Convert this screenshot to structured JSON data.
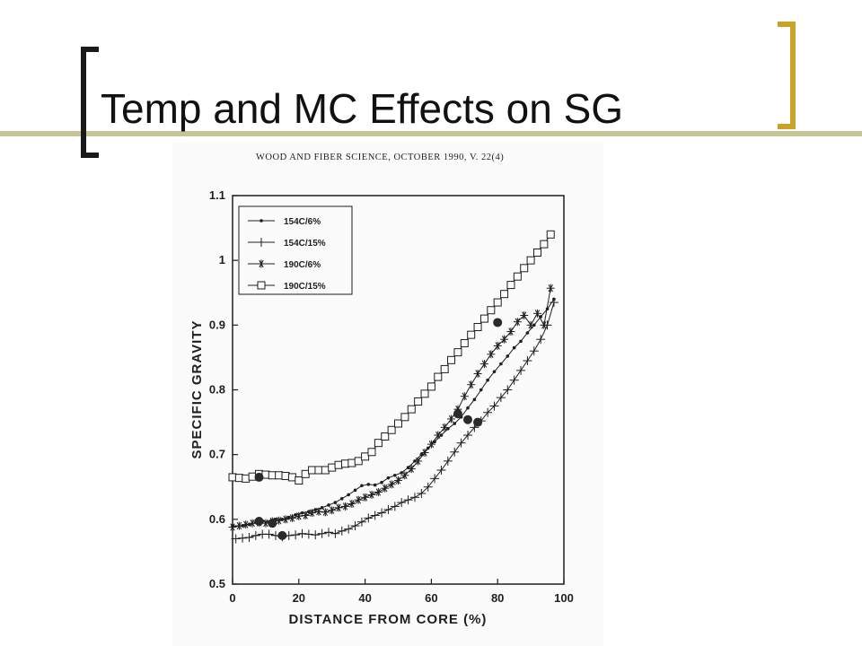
{
  "slide": {
    "title": "Temp and MC Effects on SG",
    "journal_header": "WOOD AND FIBER SCIENCE, OCTOBER 1990, V. 22(4)"
  },
  "colors": {
    "bracket_left": "#1a1a1a",
    "bracket_right": "#c9a227",
    "rule": "#c7c49a",
    "ink": "#1e1e1e"
  },
  "chart_data": {
    "type": "line",
    "title": "",
    "xlabel": "DISTANCE FROM CORE (%)",
    "ylabel": "SPECIFIC GRAVITY",
    "xlim": [
      0,
      100
    ],
    "ylim": [
      0.5,
      1.1
    ],
    "x_ticks": [
      0,
      20,
      40,
      60,
      80,
      100
    ],
    "y_ticks": [
      0.5,
      0.6,
      0.7,
      0.8,
      0.9,
      1,
      1.1
    ],
    "x_tick_labels": [
      "0",
      "20",
      "40",
      "60",
      "80",
      "100"
    ],
    "y_tick_labels": [
      "0.5",
      "0.6",
      "0.7",
      "0.8",
      "0.9",
      "1",
      "1.1"
    ],
    "grid": false,
    "legend_position": "top-left",
    "series": [
      {
        "name": "154C/6%",
        "marker": "dot",
        "x": [
          0,
          3,
          5,
          7,
          9,
          11,
          13,
          15,
          17,
          19,
          21,
          23,
          25,
          27,
          29,
          31,
          33,
          35,
          37,
          39,
          41,
          43,
          45,
          47,
          49,
          51,
          53,
          55,
          57,
          59,
          61,
          63,
          65,
          67,
          69,
          71,
          73,
          75,
          77,
          79,
          81,
          83,
          85,
          87,
          89,
          91,
          93,
          95,
          97
        ],
        "y": [
          0.59,
          0.59,
          0.592,
          0.595,
          0.597,
          0.596,
          0.6,
          0.6,
          0.603,
          0.607,
          0.61,
          0.612,
          0.615,
          0.618,
          0.622,
          0.626,
          0.632,
          0.638,
          0.645,
          0.652,
          0.654,
          0.653,
          0.657,
          0.664,
          0.668,
          0.672,
          0.68,
          0.69,
          0.7,
          0.71,
          0.72,
          0.73,
          0.74,
          0.748,
          0.758,
          0.772,
          0.785,
          0.8,
          0.815,
          0.828,
          0.84,
          0.852,
          0.865,
          0.875,
          0.888,
          0.9,
          0.913,
          0.925,
          0.94
        ]
      },
      {
        "name": "154C/15%",
        "marker": "plus",
        "x": [
          1,
          3,
          5,
          7,
          9,
          11,
          13,
          15,
          17,
          19,
          21,
          23,
          25,
          27,
          29,
          31,
          33,
          35,
          37,
          39,
          41,
          43,
          45,
          47,
          49,
          51,
          53,
          55,
          57,
          59,
          61,
          63,
          65,
          67,
          69,
          71,
          73,
          75,
          77,
          79,
          81,
          83,
          85,
          87,
          89,
          91,
          93,
          95,
          97
        ],
        "y": [
          0.57,
          0.571,
          0.572,
          0.575,
          0.577,
          0.577,
          0.575,
          0.573,
          0.575,
          0.576,
          0.578,
          0.577,
          0.576,
          0.578,
          0.58,
          0.578,
          0.582,
          0.585,
          0.59,
          0.596,
          0.602,
          0.606,
          0.61,
          0.615,
          0.62,
          0.626,
          0.63,
          0.634,
          0.64,
          0.65,
          0.663,
          0.676,
          0.69,
          0.704,
          0.718,
          0.73,
          0.742,
          0.752,
          0.765,
          0.775,
          0.788,
          0.8,
          0.815,
          0.83,
          0.845,
          0.86,
          0.878,
          0.9,
          0.935
        ]
      },
      {
        "name": "190C/6%",
        "marker": "star",
        "x": [
          0,
          2,
          4,
          6,
          8,
          10,
          12,
          14,
          16,
          18,
          20,
          22,
          24,
          26,
          28,
          30,
          32,
          34,
          36,
          38,
          40,
          42,
          44,
          46,
          48,
          50,
          52,
          54,
          56,
          58,
          60,
          62,
          64,
          66,
          68,
          70,
          72,
          74,
          76,
          78,
          80,
          82,
          84,
          86,
          88,
          90,
          92,
          94,
          96
        ],
        "y": [
          0.588,
          0.59,
          0.592,
          0.594,
          0.595,
          0.594,
          0.597,
          0.598,
          0.6,
          0.602,
          0.605,
          0.606,
          0.61,
          0.612,
          0.611,
          0.614,
          0.618,
          0.62,
          0.624,
          0.63,
          0.634,
          0.638,
          0.642,
          0.648,
          0.654,
          0.66,
          0.668,
          0.678,
          0.69,
          0.703,
          0.716,
          0.73,
          0.742,
          0.755,
          0.77,
          0.79,
          0.808,
          0.825,
          0.84,
          0.855,
          0.868,
          0.878,
          0.89,
          0.905,
          0.915,
          0.9,
          0.918,
          0.9,
          0.957
        ]
      },
      {
        "name": "190C/15%",
        "marker": "square",
        "x": [
          0,
          2,
          4,
          6,
          8,
          10,
          12,
          14,
          16,
          18,
          20,
          22,
          24,
          26,
          28,
          30,
          32,
          34,
          36,
          38,
          40,
          42,
          44,
          46,
          48,
          50,
          52,
          54,
          56,
          58,
          60,
          62,
          64,
          66,
          68,
          70,
          72,
          74,
          76,
          78,
          80,
          82,
          84,
          86,
          88,
          90,
          92,
          94,
          96
        ],
        "y": [
          0.665,
          0.664,
          0.663,
          0.666,
          0.67,
          0.669,
          0.668,
          0.668,
          0.667,
          0.665,
          0.66,
          0.67,
          0.676,
          0.676,
          0.676,
          0.68,
          0.684,
          0.686,
          0.687,
          0.69,
          0.697,
          0.704,
          0.718,
          0.728,
          0.738,
          0.748,
          0.758,
          0.77,
          0.782,
          0.794,
          0.805,
          0.82,
          0.832,
          0.846,
          0.858,
          0.872,
          0.885,
          0.897,
          0.91,
          0.923,
          0.935,
          0.948,
          0.962,
          0.975,
          0.988,
          1.0,
          1.012,
          1.025,
          1.04
        ]
      }
    ],
    "highlight_points": [
      {
        "x": 8,
        "y": 0.665
      },
      {
        "x": 8,
        "y": 0.597
      },
      {
        "x": 12,
        "y": 0.594
      },
      {
        "x": 15,
        "y": 0.575
      },
      {
        "x": 68,
        "y": 0.763
      },
      {
        "x": 71,
        "y": 0.754
      },
      {
        "x": 74,
        "y": 0.75
      },
      {
        "x": 80,
        "y": 0.904
      }
    ]
  }
}
